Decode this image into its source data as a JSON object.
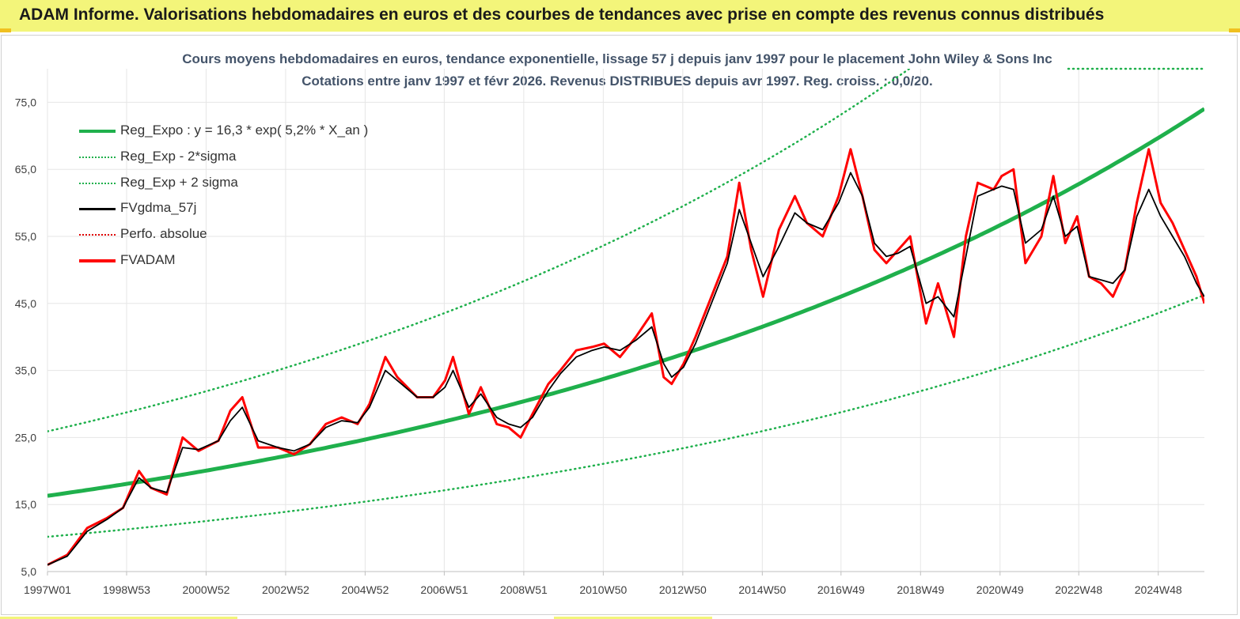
{
  "header": {
    "title": "ADAM Informe. Valorisations hebdomadaires en euros et des courbes de tendances avec prise en compte des revenus connus distribués"
  },
  "chart_data": {
    "type": "line",
    "title_line1": "Cours moyens hebdomadaires en euros, tendance exponentielle, lissage 57 j depuis janv 1997 pour le placement John Wiley & Sons Inc",
    "title_line2": "Cotations entre janv 1997 et févr 2026. Revenus DISTRIBUES depuis avr 1997. Reg. croiss. : 0,0/20.",
    "xlabel": "",
    "ylabel": "",
    "x_range": [
      1997.0,
      2026.1
    ],
    "ylim": [
      5,
      80
    ],
    "y_ticks": [
      5,
      15,
      25,
      35,
      45,
      55,
      65,
      75
    ],
    "y_tick_labels": [
      "5,0",
      "15,0",
      "25,0",
      "35,0",
      "45,0",
      "55,0",
      "65,0",
      "75,0"
    ],
    "x_ticks": [
      1997.0,
      1998.99,
      2000.99,
      2002.99,
      2004.99,
      2006.98,
      2008.98,
      2010.98,
      2012.98,
      2014.98,
      2016.96,
      2018.96,
      2020.96,
      2022.94,
      2024.94
    ],
    "x_tick_labels": [
      "1997W01",
      "1998W53",
      "2000W52",
      "2002W52",
      "2004W52",
      "2006W51",
      "2008W51",
      "2010W50",
      "2012W50",
      "2014W50",
      "2016W49",
      "2018W49",
      "2020W49",
      "2022W48",
      "2024W48"
    ],
    "grid": true,
    "legend_position": "top-left",
    "regression": {
      "a": 16.3,
      "rate": 0.052,
      "lower_factor": 0.625,
      "upper_factor": 1.59
    },
    "legend": [
      {
        "label": "Reg_Expo : y = 16,3 * exp( 5,2% *  X_an )",
        "color": "#1fb04c",
        "style": "solid-thick"
      },
      {
        "label": "Reg_Exp - 2*sigma",
        "color": "#1fb04c",
        "style": "dotted"
      },
      {
        "label": "Reg_Exp + 2 sigma",
        "color": "#1fb04c",
        "style": "dotted"
      },
      {
        "label": "FVgdma_57j",
        "color": "#000000",
        "style": "solid"
      },
      {
        "label": "Perfo. absolue",
        "color": "#e00000",
        "style": "dotted"
      },
      {
        "label": "FVADAM",
        "color": "#ff0000",
        "style": "solid-thick"
      }
    ],
    "series": [
      {
        "name": "FVADAM",
        "x": [
          1997.0,
          1997.5,
          1998.0,
          1998.5,
          1998.9,
          1999.3,
          1999.6,
          2000.0,
          2000.4,
          2000.8,
          2001.3,
          2001.6,
          2001.9,
          2002.3,
          2002.8,
          2003.2,
          2003.6,
          2004.0,
          2004.4,
          2004.8,
          2005.1,
          2005.5,
          2005.8,
          2006.3,
          2006.7,
          2007.0,
          2007.2,
          2007.6,
          2007.9,
          2008.3,
          2008.6,
          2008.9,
          2009.2,
          2009.6,
          2009.9,
          2010.3,
          2010.7,
          2011.0,
          2011.4,
          2011.8,
          2012.2,
          2012.5,
          2012.7,
          2013.0,
          2013.3,
          2013.7,
          2014.1,
          2014.4,
          2014.7,
          2015.0,
          2015.4,
          2015.8,
          2016.1,
          2016.5,
          2016.9,
          2017.2,
          2017.5,
          2017.8,
          2018.1,
          2018.4,
          2018.7,
          2019.1,
          2019.4,
          2019.8,
          2020.1,
          2020.4,
          2020.8,
          2021.0,
          2021.3,
          2021.6,
          2022.0,
          2022.3,
          2022.6,
          2022.9,
          2023.2,
          2023.5,
          2023.8,
          2024.1,
          2024.4,
          2024.7,
          2025.0,
          2025.3,
          2025.6,
          2025.9,
          2026.1
        ],
        "y": [
          6,
          7.5,
          11.5,
          13,
          14.5,
          20,
          17.5,
          16.5,
          25,
          23,
          24.5,
          29,
          31,
          23.5,
          23.5,
          22.5,
          24,
          27,
          28,
          27,
          30,
          37,
          34,
          31,
          31,
          33.5,
          37,
          28.5,
          32.5,
          27,
          26.5,
          25,
          28.5,
          33,
          35,
          38,
          38.5,
          39,
          37,
          40,
          43.5,
          34,
          33,
          36,
          40,
          46,
          52,
          63,
          53,
          46,
          56,
          61,
          57,
          55,
          61,
          68,
          61,
          53,
          51,
          53,
          55,
          42,
          48,
          40,
          55,
          63,
          62,
          64,
          65,
          51,
          55,
          64,
          54,
          58,
          49,
          48,
          46,
          50,
          60,
          68,
          60,
          57,
          53,
          49,
          45
        ]
      },
      {
        "name": "FVgdma_57j",
        "x": [
          1997.0,
          1997.5,
          1998.0,
          1998.5,
          1998.9,
          1999.3,
          1999.6,
          2000.0,
          2000.4,
          2000.8,
          2001.3,
          2001.6,
          2001.9,
          2002.3,
          2002.8,
          2003.2,
          2003.6,
          2004.0,
          2004.4,
          2004.8,
          2005.1,
          2005.5,
          2005.8,
          2006.3,
          2006.7,
          2007.0,
          2007.2,
          2007.6,
          2007.9,
          2008.3,
          2008.6,
          2008.9,
          2009.2,
          2009.6,
          2009.9,
          2010.3,
          2010.7,
          2011.0,
          2011.4,
          2011.8,
          2012.2,
          2012.5,
          2012.7,
          2013.0,
          2013.3,
          2013.7,
          2014.1,
          2014.4,
          2014.7,
          2015.0,
          2015.4,
          2015.8,
          2016.1,
          2016.5,
          2016.9,
          2017.2,
          2017.5,
          2017.8,
          2018.1,
          2018.4,
          2018.7,
          2019.1,
          2019.4,
          2019.8,
          2020.1,
          2020.4,
          2020.8,
          2021.0,
          2021.3,
          2021.6,
          2022.0,
          2022.3,
          2022.6,
          2022.9,
          2023.2,
          2023.5,
          2023.8,
          2024.1,
          2024.4,
          2024.7,
          2025.0,
          2025.3,
          2025.6,
          2025.9,
          2026.1
        ],
        "y": [
          6,
          7.3,
          11,
          12.8,
          14.5,
          19,
          17.5,
          16.8,
          23.5,
          23.2,
          24.5,
          27.5,
          29.5,
          24.5,
          23.5,
          23,
          24,
          26.5,
          27.5,
          27.2,
          29.5,
          35,
          33.5,
          31,
          31,
          32.5,
          35,
          29.5,
          31.5,
          28,
          27,
          26.5,
          28,
          32,
          34.5,
          37,
          38,
          38.5,
          38,
          39.5,
          41.5,
          36,
          34,
          35.5,
          39,
          45,
          51,
          59,
          54,
          49,
          53.5,
          58.5,
          57,
          56,
          60,
          64.5,
          61,
          54,
          52,
          52.5,
          53.5,
          45,
          46,
          43,
          52,
          61,
          62,
          62.5,
          62,
          54,
          56,
          61,
          55,
          56.5,
          49,
          48.5,
          48,
          50,
          58,
          62,
          58,
          55,
          52,
          48,
          46
        ]
      }
    ]
  }
}
